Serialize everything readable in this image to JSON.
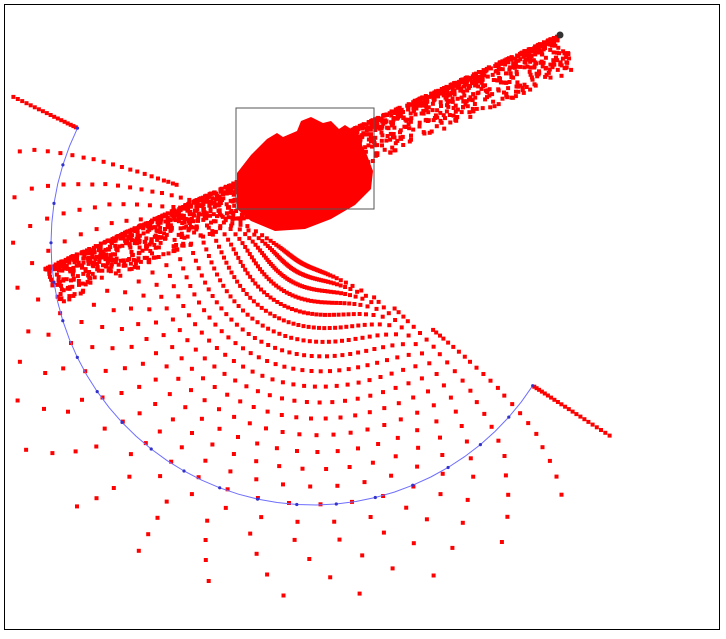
{
  "canvas": {
    "background": "#ffffff",
    "border_color": "#000000"
  },
  "scatter": {
    "point_color": "#ff0000",
    "arc_color": "#6e6eff",
    "arc_vertex_color": "#3333cc",
    "pole_color": "#333333",
    "zoom_box_color": "#555555"
  }
}
